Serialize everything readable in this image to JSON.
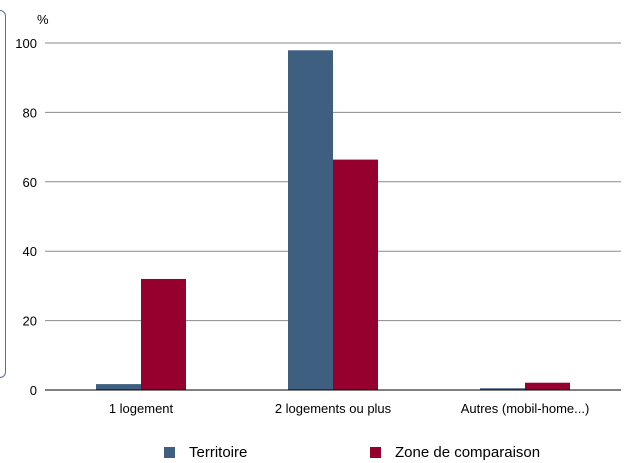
{
  "chart_data": {
    "type": "bar",
    "ylabel": "%",
    "ylim": [
      0,
      100
    ],
    "yticks": [
      0,
      20,
      40,
      60,
      80,
      100
    ],
    "grid": true,
    "legend_position": "bottom",
    "categories": [
      "1 logement",
      "2 logements ou plus",
      "Autres (mobil-home...)"
    ],
    "series": [
      {
        "name": "Territoire",
        "color": "#3e5f80",
        "values": [
          1.7,
          97.9,
          0.5
        ]
      },
      {
        "name": "Zone de comparaison",
        "color": "#96002e",
        "values": [
          32,
          66.4,
          2.1
        ]
      }
    ]
  }
}
